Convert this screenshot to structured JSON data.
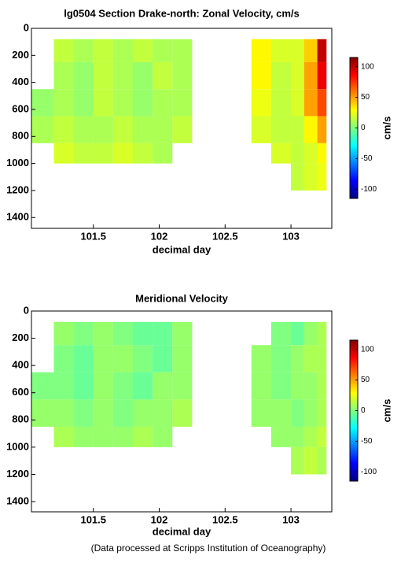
{
  "chart_data": [
    {
      "type": "heatmap",
      "title": "lg0504 Section Drake-north: Zonal Velocity, cm/s",
      "x_label": "decimal day",
      "colorbar_label": "cm/s",
      "x_edges": [
        101.03,
        101.2,
        101.35,
        101.5,
        101.65,
        101.8,
        101.95,
        102.1,
        102.25,
        102.7,
        102.85,
        103.0,
        103.1,
        103.2,
        103.27
      ],
      "depth_edges": [
        80,
        250,
        450,
        650,
        850,
        1000,
        1200
      ],
      "values": [
        [
          null,
          15,
          10,
          15,
          10,
          15,
          10,
          10,
          null,
          30,
          20,
          20,
          40,
          100
        ],
        [
          null,
          10,
          5,
          15,
          10,
          5,
          15,
          10,
          null,
          30,
          15,
          20,
          50,
          90
        ],
        [
          5,
          10,
          5,
          15,
          10,
          5,
          10,
          10,
          null,
          25,
          15,
          20,
          50,
          70
        ],
        [
          10,
          15,
          10,
          10,
          15,
          10,
          10,
          15,
          null,
          20,
          15,
          15,
          30,
          50
        ],
        [
          null,
          20,
          15,
          15,
          20,
          15,
          10,
          null,
          null,
          null,
          20,
          15,
          20,
          30
        ],
        [
          null,
          null,
          null,
          null,
          null,
          null,
          null,
          null,
          null,
          null,
          null,
          15,
          20,
          25
        ]
      ],
      "xlim": [
        101.03,
        103.31
      ],
      "xticks": [
        101.5,
        102,
        102.5,
        103
      ],
      "ylim": [
        0,
        1480
      ],
      "yticks": [
        0,
        200,
        400,
        600,
        800,
        1000,
        1200,
        1400
      ],
      "y_reversed": true,
      "clim": [
        -115,
        115
      ],
      "cticks": [
        -100,
        -50,
        0,
        50,
        100
      ],
      "colormap": "jet"
    },
    {
      "type": "heatmap",
      "title": "Meridional Velocity",
      "x_label": "decimal day",
      "colorbar_label": "cm/s",
      "x_edges": [
        101.03,
        101.2,
        101.35,
        101.5,
        101.65,
        101.8,
        101.95,
        102.1,
        102.25,
        102.7,
        102.85,
        103.0,
        103.1,
        103.2,
        103.27
      ],
      "depth_edges": [
        80,
        250,
        450,
        650,
        850,
        1000,
        1200
      ],
      "values": [
        [
          null,
          5,
          0,
          5,
          0,
          -5,
          -5,
          5,
          null,
          null,
          0,
          -5,
          5,
          10
        ],
        [
          null,
          0,
          -5,
          5,
          5,
          0,
          -5,
          5,
          null,
          5,
          0,
          5,
          10,
          10
        ],
        [
          0,
          0,
          -5,
          5,
          0,
          -5,
          5,
          5,
          null,
          5,
          0,
          5,
          5,
          10
        ],
        [
          5,
          5,
          0,
          5,
          0,
          5,
          5,
          10,
          null,
          5,
          5,
          0,
          5,
          10
        ],
        [
          null,
          10,
          5,
          5,
          5,
          10,
          5,
          null,
          null,
          null,
          5,
          5,
          10,
          15
        ],
        [
          null,
          null,
          null,
          null,
          null,
          null,
          null,
          null,
          null,
          null,
          null,
          10,
          15,
          10
        ]
      ],
      "xlim": [
        101.03,
        103.31
      ],
      "xticks": [
        101.5,
        102,
        102.5,
        103
      ],
      "ylim": [
        0,
        1475
      ],
      "yticks": [
        0,
        200,
        400,
        600,
        800,
        1000,
        1200,
        1400
      ],
      "y_reversed": true,
      "clim": [
        -115,
        115
      ],
      "cticks": [
        -100,
        -50,
        0,
        50,
        100
      ],
      "colormap": "jet"
    }
  ],
  "footnote": "(Data processed at Scripps Institution of Oceanography)"
}
